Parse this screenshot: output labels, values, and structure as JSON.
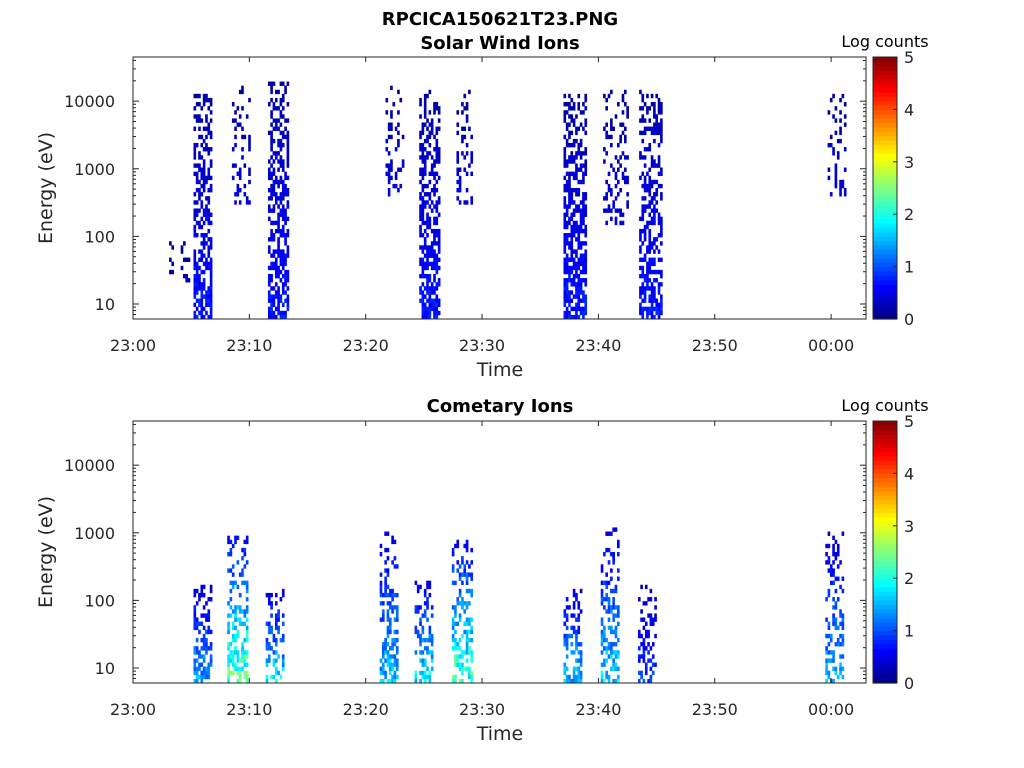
{
  "figure_title": "RPCICA150621T23.PNG",
  "colorscale": [
    "#00007f",
    "#0000ff",
    "#007fff",
    "#00ffff",
    "#7fff7f",
    "#ffff00",
    "#ff7f00",
    "#ff0000",
    "#7f0000"
  ],
  "chart_data": [
    {
      "type": "heatmap",
      "title": "Solar Wind Ions",
      "xlabel": "Time",
      "ylabel": "Energy (eV)",
      "yscale": "log",
      "ylim": [
        6,
        45000
      ],
      "xlim": [
        "23:00",
        "00:03"
      ],
      "xticks": [
        "23:00",
        "23:10",
        "23:20",
        "23:30",
        "23:40",
        "23:50",
        "00:00"
      ],
      "yticks": [
        10,
        100,
        1000,
        10000
      ],
      "colorbar": {
        "label": "Log counts",
        "range": [
          0,
          5
        ],
        "ticks": [
          0,
          1,
          2,
          3,
          4,
          5
        ]
      },
      "bursts": [
        {
          "time": "23:04",
          "minutes": 4.0,
          "width": 1.8,
          "emin": 20,
          "emax": 150,
          "peak": 0.3,
          "density": 0.2
        },
        {
          "time": "23:06",
          "minutes": 6.0,
          "width": 1.6,
          "emin": 6,
          "emax": 12000,
          "peak": 0.9,
          "density": 0.7
        },
        {
          "time": "23:09",
          "minutes": 9.3,
          "width": 1.6,
          "emin": 300,
          "emax": 18000,
          "peak": 0.6,
          "density": 0.3
        },
        {
          "time": "23:12",
          "minutes": 12.5,
          "width": 1.8,
          "emin": 6,
          "emax": 20000,
          "peak": 0.9,
          "density": 0.75
        },
        {
          "time": "23:23",
          "minutes": 22.5,
          "width": 1.6,
          "emin": 400,
          "emax": 18000,
          "peak": 0.6,
          "density": 0.3
        },
        {
          "time": "23:26",
          "minutes": 25.5,
          "width": 1.8,
          "emin": 6,
          "emax": 14000,
          "peak": 0.9,
          "density": 0.7
        },
        {
          "time": "23:28",
          "minutes": 28.5,
          "width": 1.4,
          "emin": 300,
          "emax": 15000,
          "peak": 0.6,
          "density": 0.3
        },
        {
          "time": "23:38",
          "minutes": 38.0,
          "width": 2.0,
          "emin": 6,
          "emax": 12000,
          "peak": 0.9,
          "density": 0.75
        },
        {
          "time": "23:42",
          "minutes": 41.5,
          "width": 2.2,
          "emin": 150,
          "emax": 14000,
          "peak": 0.6,
          "density": 0.35
        },
        {
          "time": "23:45",
          "minutes": 44.5,
          "width": 2.0,
          "emin": 6,
          "emax": 15000,
          "peak": 0.9,
          "density": 0.7
        },
        {
          "time": "00:00",
          "minutes": 60.5,
          "width": 1.6,
          "emin": 350,
          "emax": 12000,
          "peak": 0.6,
          "density": 0.3
        }
      ]
    },
    {
      "type": "heatmap",
      "title": "Cometary Ions",
      "xlabel": "Time",
      "ylabel": "Energy (eV)",
      "yscale": "log",
      "ylim": [
        6,
        45000
      ],
      "xlim": [
        "23:00",
        "00:03"
      ],
      "xticks": [
        "23:00",
        "23:10",
        "23:20",
        "23:30",
        "23:40",
        "23:50",
        "00:00"
      ],
      "yticks": [
        10,
        100,
        1000,
        10000
      ],
      "colorbar": {
        "label": "Log counts",
        "range": [
          0,
          5
        ],
        "ticks": [
          0,
          1,
          2,
          3,
          4,
          5
        ]
      },
      "bursts": [
        {
          "time": "23:06",
          "minutes": 6.0,
          "width": 1.6,
          "emin": 6,
          "emax": 180,
          "peak": 1.8,
          "density": 0.5
        },
        {
          "time": "23:09",
          "minutes": 9.0,
          "width": 1.8,
          "emin": 6,
          "emax": 900,
          "peak": 2.9,
          "density": 0.55
        },
        {
          "time": "23:12",
          "minutes": 12.2,
          "width": 1.6,
          "emin": 6,
          "emax": 150,
          "peak": 2.1,
          "density": 0.5
        },
        {
          "time": "23:22",
          "minutes": 22.0,
          "width": 1.6,
          "emin": 6,
          "emax": 1100,
          "peak": 2.0,
          "density": 0.5
        },
        {
          "time": "23:25",
          "minutes": 25.0,
          "width": 1.6,
          "emin": 6,
          "emax": 200,
          "peak": 2.2,
          "density": 0.5
        },
        {
          "time": "23:28",
          "minutes": 28.3,
          "width": 1.8,
          "emin": 6,
          "emax": 800,
          "peak": 2.7,
          "density": 0.55
        },
        {
          "time": "23:38",
          "minutes": 37.8,
          "width": 1.6,
          "emin": 6,
          "emax": 150,
          "peak": 2.0,
          "density": 0.5
        },
        {
          "time": "23:41",
          "minutes": 41.0,
          "width": 1.6,
          "emin": 6,
          "emax": 1200,
          "peak": 2.1,
          "density": 0.5
        },
        {
          "time": "23:44",
          "minutes": 44.2,
          "width": 1.6,
          "emin": 6,
          "emax": 180,
          "peak": 1.2,
          "density": 0.45
        },
        {
          "time": "00:00",
          "minutes": 60.3,
          "width": 1.6,
          "emin": 6,
          "emax": 1200,
          "peak": 1.8,
          "density": 0.5
        }
      ]
    }
  ]
}
